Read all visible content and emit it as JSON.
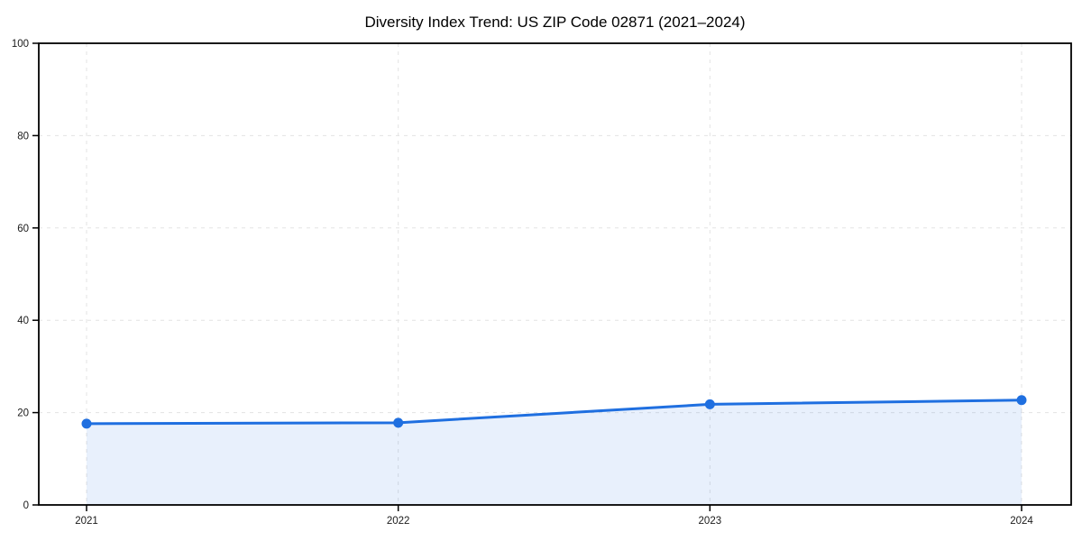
{
  "chart_data": {
    "type": "line",
    "title": "Diversity Index Trend: US ZIP Code 02871 (2021–2024)",
    "series_name": "Diversity Index",
    "x": [
      2021,
      2022,
      2023,
      2024
    ],
    "xtick_labels": [
      "2021",
      "2022",
      "2023",
      "2024"
    ],
    "values": [
      17.6,
      17.8,
      21.8,
      22.7
    ],
    "xlabel": "",
    "ylabel": "",
    "ylim": [
      0,
      100
    ],
    "yticks": [
      0,
      20,
      40,
      60,
      80,
      100
    ],
    "grid": true,
    "grid_style": "dashed",
    "legend": false,
    "area_fill": true,
    "marker": "circle",
    "colors": {
      "line": "#1f6fe0",
      "marker": "#1f6fe0",
      "area_fill": "#1f6fe0",
      "area_fill_opacity": 0.1,
      "grid": "#e3e3e3",
      "axis_border": "#000000",
      "tick_text": "#1a1a1a",
      "background": "#ffffff"
    }
  }
}
